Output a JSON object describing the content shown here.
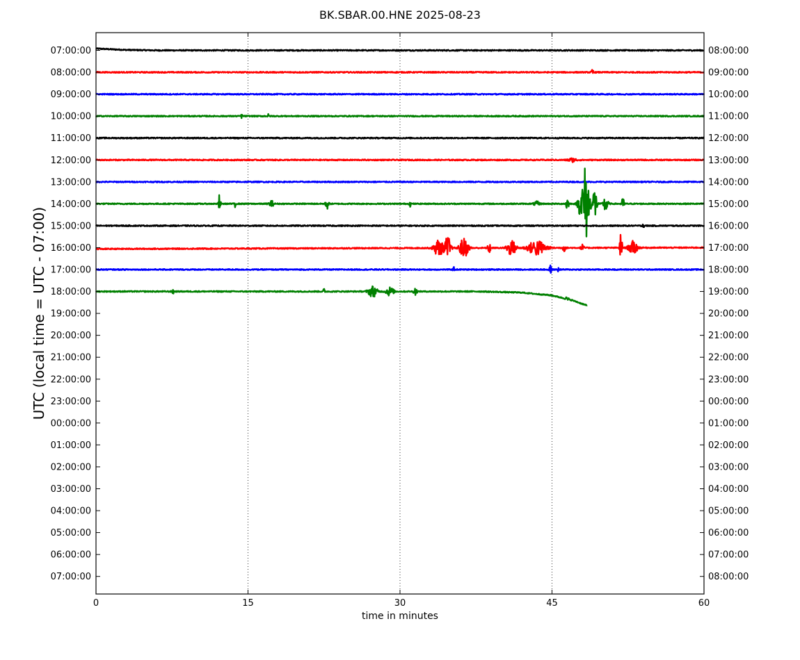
{
  "chart_data": {
    "type": "line",
    "title": "BK.SBAR.00.HNE 2025-08-23",
    "xlabel": "time in minutes",
    "ylabel": "UTC (local time = UTC - 07:00)",
    "xlim": [
      0,
      60
    ],
    "x_ticks": [
      "0",
      "15",
      "30",
      "45",
      "60"
    ],
    "x_tick_values": [
      0,
      15,
      30,
      45,
      60
    ],
    "grid": "vertical dotted at 15, 30, 45",
    "left_tick_labels": [
      "07:00:00",
      "08:00:00",
      "09:00:00",
      "10:00:00",
      "11:00:00",
      "12:00:00",
      "13:00:00",
      "14:00:00",
      "15:00:00",
      "16:00:00",
      "17:00:00",
      "18:00:00",
      "19:00:00",
      "20:00:00",
      "21:00:00",
      "22:00:00",
      "23:00:00",
      "00:00:00",
      "01:00:00",
      "02:00:00",
      "03:00:00",
      "04:00:00",
      "05:00:00",
      "06:00:00",
      "07:00:00"
    ],
    "right_tick_labels": [
      "08:00:00",
      "09:00:00",
      "10:00:00",
      "11:00:00",
      "12:00:00",
      "13:00:00",
      "14:00:00",
      "15:00:00",
      "16:00:00",
      "17:00:00",
      "18:00:00",
      "19:00:00",
      "20:00:00",
      "21:00:00",
      "22:00:00",
      "23:00:00",
      "00:00:00",
      "01:00:00",
      "02:00:00",
      "03:00:00",
      "04:00:00",
      "05:00:00",
      "06:00:00",
      "07:00:00",
      "08:00:00"
    ],
    "trace_colors": [
      "#000000",
      "#ff0000",
      "#0000ff",
      "#008000"
    ],
    "traces": [
      {
        "row": 0,
        "color": "#000000",
        "end_minute": 60,
        "drift": [
          [
            0,
            0.08
          ],
          [
            3,
            0.02
          ],
          [
            6,
            0.0
          ],
          [
            60,
            0.0
          ]
        ],
        "bursts": []
      },
      {
        "row": 1,
        "color": "#ff0000",
        "end_minute": 60,
        "drift": [],
        "bursts": [
          [
            49.0,
            0.12,
            0.15
          ]
        ]
      },
      {
        "row": 2,
        "color": "#0000ff",
        "end_minute": 60,
        "drift": [],
        "bursts": []
      },
      {
        "row": 3,
        "color": "#008000",
        "end_minute": 60,
        "drift": [],
        "bursts": [
          [
            14.4,
            0.1,
            0.12
          ],
          [
            17.0,
            0.08,
            0.1
          ]
        ]
      },
      {
        "row": 4,
        "color": "#000000",
        "end_minute": 60,
        "drift": [],
        "bursts": []
      },
      {
        "row": 5,
        "color": "#ff0000",
        "end_minute": 60,
        "drift": [],
        "bursts": [
          [
            47.0,
            0.08,
            0.6
          ]
        ]
      },
      {
        "row": 6,
        "color": "#0000ff",
        "end_minute": 60,
        "drift": [],
        "bursts": []
      },
      {
        "row": 7,
        "color": "#008000",
        "end_minute": 60,
        "drift": [],
        "bursts": [
          [
            12.2,
            0.5,
            0.12
          ],
          [
            13.7,
            0.25,
            0.1
          ],
          [
            17.3,
            0.15,
            0.3
          ],
          [
            22.8,
            0.25,
            0.2
          ],
          [
            31.0,
            0.12,
            0.1
          ],
          [
            43.5,
            0.1,
            0.4
          ],
          [
            46.5,
            0.3,
            0.2
          ],
          [
            47.7,
            0.35,
            0.3
          ],
          [
            48.3,
            1.8,
            0.5
          ],
          [
            49.2,
            0.8,
            0.3
          ],
          [
            50.3,
            0.4,
            0.3
          ],
          [
            52.0,
            0.25,
            0.2
          ]
        ]
      },
      {
        "row": 8,
        "color": "#000000",
        "end_minute": 60,
        "drift": [],
        "bursts": [
          [
            54.0,
            0.3,
            0.08
          ]
        ]
      },
      {
        "row": 9,
        "color": "#ff0000",
        "end_minute": 60,
        "drift": [
          [
            0,
            -0.06
          ],
          [
            30,
            -0.02
          ],
          [
            60,
            0.0
          ]
        ],
        "bursts": [
          [
            33.8,
            0.4,
            0.6
          ],
          [
            34.7,
            0.55,
            0.4
          ],
          [
            36.3,
            0.45,
            0.6
          ],
          [
            38.8,
            0.25,
            0.2
          ],
          [
            41.0,
            0.35,
            0.6
          ],
          [
            43.5,
            0.35,
            1.2
          ],
          [
            46.2,
            0.15,
            0.2
          ],
          [
            48.0,
            0.15,
            0.2
          ],
          [
            51.8,
            0.85,
            0.15
          ],
          [
            53.0,
            0.3,
            0.6
          ]
        ]
      },
      {
        "row": 10,
        "color": "#0000ff",
        "end_minute": 60,
        "drift": [],
        "bursts": [
          [
            35.3,
            0.12,
            0.1
          ],
          [
            44.8,
            0.2,
            0.2
          ],
          [
            45.6,
            0.12,
            0.1
          ]
        ]
      },
      {
        "row": 11,
        "color": "#008000",
        "end_minute": 48.5,
        "drift": [
          [
            0,
            0
          ],
          [
            38,
            0
          ],
          [
            42,
            -0.05
          ],
          [
            45,
            -0.18
          ],
          [
            47,
            -0.4
          ],
          [
            48.5,
            -0.65
          ]
        ],
        "bursts": [
          [
            7.6,
            0.15,
            0.1
          ],
          [
            22.5,
            0.15,
            0.1
          ],
          [
            27.3,
            0.25,
            0.6
          ],
          [
            29.0,
            0.2,
            0.5
          ],
          [
            31.5,
            0.2,
            0.2
          ],
          [
            46.5,
            0.1,
            0.2
          ]
        ]
      }
    ]
  }
}
